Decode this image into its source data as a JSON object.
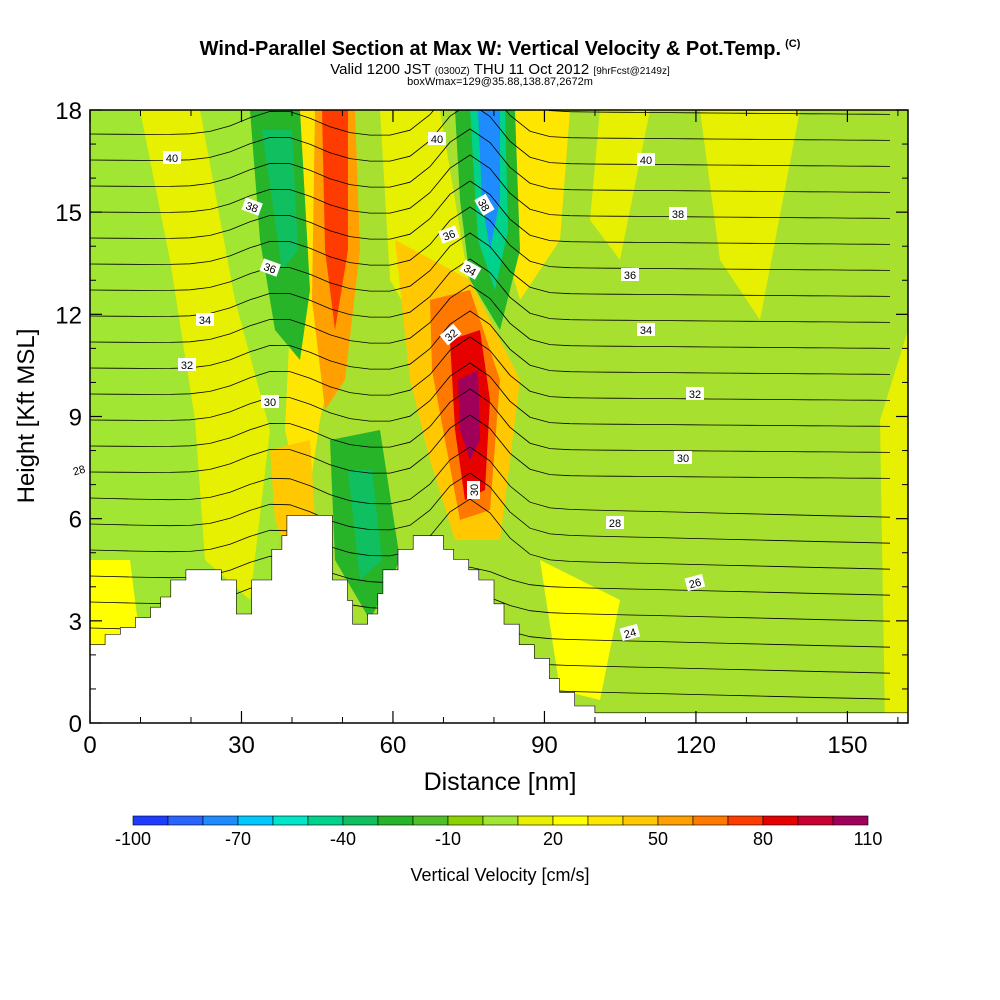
{
  "header": {
    "title": "Wind-Parallel Section at Max W: Vertical Velocity & Pot.Temp.",
    "title_units": "(C)",
    "valid_prefix": "Valid 1200 JST",
    "valid_utc": "(0300Z)",
    "valid_date": "THU 11 Oct 2012",
    "forecast_note": "[9hrFcst@2149z]",
    "box_info": "boxWmax=129@35.88,138.87,2672m"
  },
  "chart_data": {
    "type": "heatmap",
    "xlabel": "Distance [nm]",
    "ylabel": "Height [Kft MSL]",
    "xlim": [
      0,
      162
    ],
    "ylim": [
      0,
      18
    ],
    "xticks": [
      "0",
      "30",
      "60",
      "90",
      "120",
      "150"
    ],
    "xtick_values": [
      0,
      30,
      60,
      90,
      120,
      150
    ],
    "yticks": [
      "0",
      "3",
      "6",
      "9",
      "12",
      "15",
      "18"
    ],
    "ytick_values": [
      0,
      3,
      6,
      9,
      12,
      15,
      18
    ],
    "colorbar": {
      "label": "Vertical Velocity [cm/s]",
      "tick_labels": [
        "-100",
        "-70",
        "-40",
        "-10",
        "20",
        "50",
        "80",
        "110"
      ],
      "tick_values": [
        -100,
        -70,
        -40,
        -10,
        20,
        50,
        80,
        110
      ],
      "levels": [
        -100,
        -90,
        -80,
        -70,
        -60,
        -50,
        -40,
        -30,
        -20,
        -10,
        0,
        10,
        20,
        30,
        40,
        50,
        60,
        70,
        80,
        90,
        100,
        110
      ],
      "colors": [
        "#1e3cff",
        "#2a64ff",
        "#1e8cff",
        "#00c8ff",
        "#00e6c8",
        "#00d28c",
        "#10c060",
        "#28b428",
        "#50be28",
        "#8cd200",
        "#a0e632",
        "#e6f000",
        "#ffff00",
        "#ffe600",
        "#ffc800",
        "#ffa000",
        "#ff7800",
        "#ff3c00",
        "#e60000",
        "#c80032",
        "#a0005a"
      ]
    },
    "theta_contour_labels": [
      "40",
      "38",
      "36",
      "34",
      "32",
      "30",
      "28",
      "26",
      "24"
    ],
    "terrain_kft": [
      [
        0,
        2.3
      ],
      [
        3,
        2.3
      ],
      [
        3,
        2.6
      ],
      [
        6,
        2.6
      ],
      [
        6,
        2.8
      ],
      [
        9,
        2.8
      ],
      [
        9,
        3.1
      ],
      [
        12,
        3.1
      ],
      [
        12,
        3.4
      ],
      [
        14,
        3.4
      ],
      [
        14,
        3.7
      ],
      [
        16,
        3.7
      ],
      [
        16,
        4.2
      ],
      [
        19,
        4.2
      ],
      [
        19,
        4.5
      ],
      [
        26,
        4.5
      ],
      [
        26,
        4.2
      ],
      [
        29,
        4.2
      ],
      [
        29,
        3.2
      ],
      [
        32,
        3.2
      ],
      [
        32,
        4.2
      ],
      [
        36,
        4.2
      ],
      [
        36,
        5.1
      ],
      [
        38,
        5.1
      ],
      [
        38,
        5.5
      ],
      [
        39,
        5.5
      ],
      [
        39,
        6.1
      ],
      [
        48,
        6.1
      ],
      [
        48,
        4.2
      ],
      [
        51,
        4.2
      ],
      [
        51,
        3.6
      ],
      [
        52,
        3.6
      ],
      [
        52,
        2.9
      ],
      [
        55,
        2.9
      ],
      [
        55,
        3.2
      ],
      [
        57,
        3.2
      ],
      [
        57,
        3.8
      ],
      [
        58,
        3.8
      ],
      [
        58,
        4.5
      ],
      [
        61,
        4.5
      ],
      [
        61,
        5.1
      ],
      [
        64,
        5.1
      ],
      [
        64,
        5.5
      ],
      [
        70,
        5.5
      ],
      [
        70,
        5.1
      ],
      [
        72,
        5.1
      ],
      [
        72,
        4.8
      ],
      [
        75,
        4.8
      ],
      [
        75,
        4.5
      ],
      [
        77,
        4.5
      ],
      [
        77,
        4.2
      ],
      [
        80,
        4.2
      ],
      [
        80,
        3.5
      ],
      [
        82,
        3.5
      ],
      [
        82,
        2.9
      ],
      [
        85,
        2.9
      ],
      [
        85,
        2.3
      ],
      [
        88,
        2.3
      ],
      [
        88,
        1.9
      ],
      [
        91,
        1.9
      ],
      [
        91,
        1.3
      ],
      [
        93,
        1.3
      ],
      [
        93,
        0.9
      ],
      [
        96,
        0.9
      ],
      [
        96,
        0.5
      ],
      [
        100,
        0.5
      ],
      [
        100,
        0.3
      ],
      [
        162,
        0.3
      ]
    ]
  }
}
